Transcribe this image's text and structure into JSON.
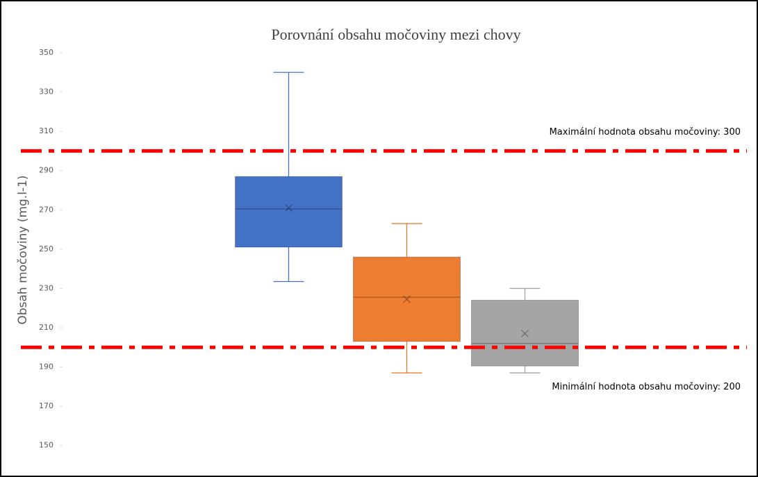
{
  "chart_data": {
    "type": "box",
    "title": "Porovnání obsahu močoviny mezi chovy",
    "y_label": "Obsah močoviny (mg.l-1)",
    "ylim": [
      140,
      350
    ],
    "yticks": [
      150,
      170,
      190,
      210,
      230,
      250,
      270,
      290,
      310,
      330,
      350
    ],
    "series": [
      {
        "color": "#4472c4",
        "whisker_low": 233.5,
        "q1": 251,
        "median": 270.5,
        "q3": 287,
        "whisker_high": 340,
        "mean": 271
      },
      {
        "color": "#ed7d31",
        "whisker_low": 187,
        "q1": 203,
        "median": 225.5,
        "q3": 246,
        "whisker_high": 263,
        "mean": 224.5
      },
      {
        "color": "#a5a5a5",
        "whisker_low": 187,
        "q1": 190.5,
        "median": 202,
        "q3": 224,
        "whisker_high": 230,
        "mean": 207
      }
    ],
    "reference_lines": [
      {
        "value": 300,
        "label": "Maximální hodnota obsahu močoviny: 300",
        "color": "#ff0000"
      },
      {
        "value": 200,
        "label": "Minimální hodnota obsahu močoviny: 200",
        "color": "#ff0000"
      }
    ]
  }
}
